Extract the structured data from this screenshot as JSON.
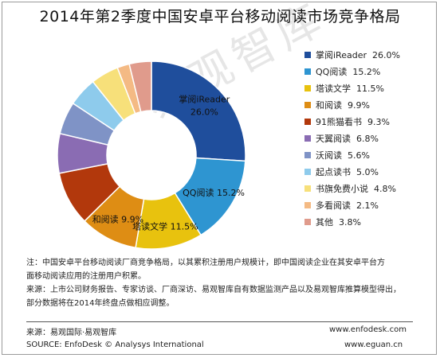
{
  "watermark": "易观智库",
  "chart_data": {
    "type": "pie",
    "title": "2014年第2季度中国安卓平台移动阅读市场竞争格局",
    "legend_position": "right",
    "slices": [
      {
        "name": "掌阅iReader",
        "value": 26.0,
        "label": "26.0%",
        "color": "#1f4e9c"
      },
      {
        "name": "QQ阅读",
        "value": 15.2,
        "label": "15.2%",
        "color": "#2e95d1"
      },
      {
        "name": "塔读文学",
        "value": 11.5,
        "label": "11.5%",
        "color": "#e8c20e"
      },
      {
        "name": "和阅读",
        "value": 9.9,
        "label": "9.9%",
        "color": "#de8d14"
      },
      {
        "name": "91熊猫看书",
        "value": 9.3,
        "label": "9.3%",
        "color": "#b2380c"
      },
      {
        "name": "天翼阅读",
        "value": 6.8,
        "label": "6.8%",
        "color": "#8a6cb3"
      },
      {
        "name": "沃阅读",
        "value": 5.6,
        "label": "5.6%",
        "color": "#7f93c6"
      },
      {
        "name": "起点读书",
        "value": 5.0,
        "label": "5.0%",
        "color": "#8ecbec"
      },
      {
        "name": "书旗免费小说",
        "value": 4.8,
        "label": "4.8%",
        "color": "#f7e07a"
      },
      {
        "name": "多看阅读",
        "value": 2.1,
        "label": "2.1%",
        "color": "#f4ba84"
      },
      {
        "name": "其他",
        "value": 3.8,
        "label": "3.8%",
        "color": "#e09b8c"
      }
    ],
    "inline_labels": [
      {
        "slice": 0,
        "name": "掌阅iReader",
        "value": "26.0%"
      },
      {
        "slice": 1,
        "name": "QQ阅读",
        "value": "15.2%"
      },
      {
        "slice": 2,
        "name": "塔读文学",
        "value": "11.5%"
      },
      {
        "slice": 3,
        "name": "和阅读",
        "value": "9.9%"
      }
    ]
  },
  "notes": {
    "line1": "注：中国安卓平台移动阅读厂商竞争格局，以其累积注册用户规模计，即中国阅读企业在其安卓平台方",
    "line2": "面移动阅读应用的注册用户积累。",
    "line3": "来源：上市公司财务报告、专家访谈、厂商深访、易观智库自有数据监测产品以及易观智库推算模型得出，",
    "line4": "部分数据将在2014年终盘点做相应调整。"
  },
  "footer": {
    "source_cn": "来源：易观国际·易观智库",
    "source_en": "SOURCE: EnfoDesk © Analysys International",
    "url1": "www.enfodesk.com",
    "url2": "www.eguan.cn"
  }
}
